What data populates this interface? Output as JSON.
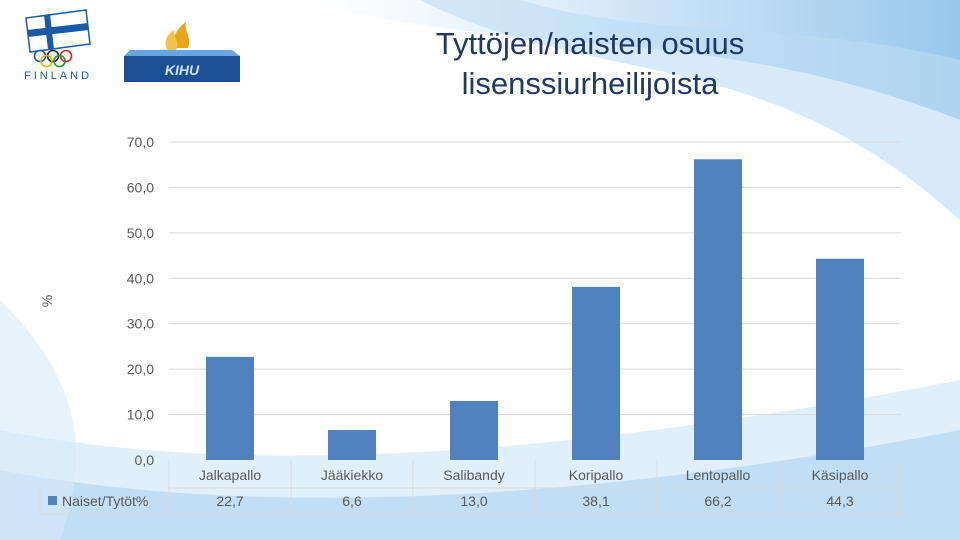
{
  "header": {
    "title_line1": "Tyttöjen/naisten osuus",
    "title_line2": "lisenssiurheilijoista",
    "logo_left_text": "FINLAND",
    "logo_right_text": "KIHU"
  },
  "colors": {
    "bar": "#4f81bd",
    "title": "#1f3864",
    "grid": "#d9d9d9",
    "axis_text": "#595959"
  },
  "chart_data": {
    "type": "bar",
    "title": "Tyttöjen/naisten osuus lisenssiurheilijoista",
    "categories": [
      "Jalkapallo",
      "Jääkiekko",
      "Salibandy",
      "Koripallo",
      "Lentopallo",
      "Käsipallo"
    ],
    "series": [
      {
        "name": "Naiset/Tytöt%",
        "values": [
          22.7,
          6.6,
          13.0,
          38.1,
          66.2,
          44.3
        ],
        "labels": [
          "22,7",
          "6,6",
          "13,0",
          "38,1",
          "66,2",
          "44,3"
        ]
      }
    ],
    "ylabel": "%",
    "ylim": [
      0,
      70
    ],
    "yticks": [
      0,
      10,
      20,
      30,
      40,
      50,
      60,
      70
    ],
    "ytick_labels": [
      "0,0",
      "10,0",
      "20,0",
      "30,0",
      "40,0",
      "50,0",
      "60,0",
      "70,0"
    ],
    "grid": true,
    "data_table": true,
    "legend_position": "table-left"
  }
}
